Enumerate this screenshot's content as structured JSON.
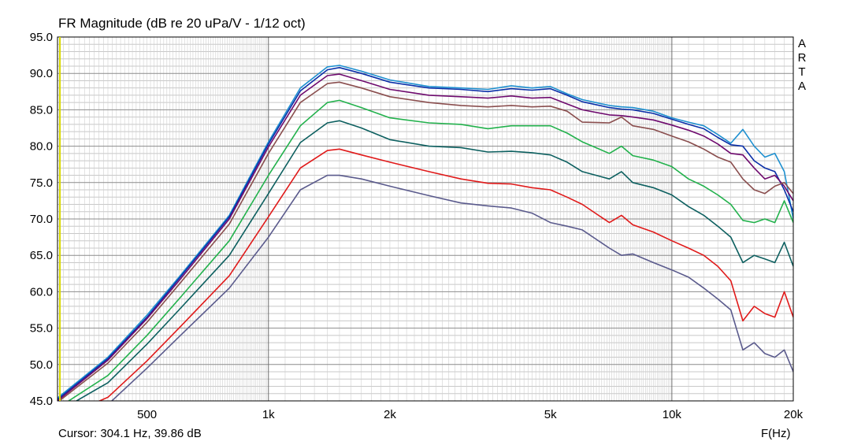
{
  "chart_data": {
    "type": "line",
    "title": "FR Magnitude (dB re 20 uPa/V - 1/12 oct)",
    "xlabel": "F(Hz)",
    "xscale": "log",
    "xlim": [
      300,
      20000
    ],
    "ylim": [
      45,
      95
    ],
    "grid": true,
    "yticks": [
      "95.0",
      "90.0",
      "85.0",
      "80.0",
      "75.0",
      "70.0",
      "65.0",
      "60.0",
      "55.0",
      "50.0",
      "45.0"
    ],
    "xticks": [
      {
        "label": "500",
        "value": 500
      },
      {
        "label": "1k",
        "value": 1000
      },
      {
        "label": "2k",
        "value": 2000
      },
      {
        "label": "5k",
        "value": 5000
      },
      {
        "label": "10k",
        "value": 10000
      },
      {
        "label": "20k",
        "value": 20000
      }
    ],
    "x": [
      300,
      400,
      500,
      600,
      800,
      1000,
      1200,
      1400,
      1500,
      1700,
      2000,
      2500,
      3000,
      3500,
      4000,
      4500,
      5000,
      5500,
      6000,
      7000,
      7500,
      8000,
      9000,
      10000,
      11000,
      12000,
      13000,
      14000,
      15000,
      16000,
      17000,
      18000,
      19000,
      20000
    ],
    "series": [
      {
        "color": "#1e90d0",
        "values": [
          45.4,
          51.0,
          56.8,
          62.0,
          70.5,
          80.6,
          88.0,
          90.9,
          91.1,
          90.3,
          89.1,
          88.2,
          88.0,
          87.8,
          88.3,
          88.0,
          88.2,
          87.2,
          86.4,
          85.6,
          85.4,
          85.3,
          84.8,
          83.9,
          83.3,
          82.8,
          81.6,
          80.4,
          82.3,
          80.0,
          78.5,
          79.0,
          76.5,
          70.0
        ]
      },
      {
        "color": "#0a2fa8",
        "values": [
          45.2,
          50.8,
          56.5,
          61.8,
          70.3,
          80.3,
          87.6,
          90.5,
          90.8,
          90.0,
          88.8,
          88.0,
          87.8,
          87.5,
          87.9,
          87.7,
          87.9,
          87.0,
          86.1,
          85.3,
          85.1,
          85.0,
          84.5,
          83.7,
          83.0,
          82.4,
          81.2,
          80.2,
          80.0,
          78.0,
          77.0,
          76.5,
          74.0,
          71.0
        ]
      },
      {
        "color": "#6e0a6e",
        "values": [
          45.0,
          50.6,
          56.3,
          61.5,
          70.0,
          79.9,
          87.0,
          89.7,
          89.9,
          89.0,
          87.8,
          87.0,
          86.8,
          86.6,
          86.9,
          86.6,
          86.7,
          85.8,
          85.0,
          84.3,
          84.2,
          84.0,
          83.6,
          82.9,
          82.2,
          81.4,
          80.3,
          79.0,
          78.8,
          77.0,
          75.5,
          76.0,
          74.5,
          72.5
        ]
      },
      {
        "color": "#8a4e4e",
        "values": [
          44.8,
          50.2,
          55.8,
          61.0,
          69.3,
          79.0,
          86.0,
          88.6,
          88.8,
          88.0,
          86.8,
          86.0,
          85.6,
          85.4,
          85.6,
          85.4,
          85.5,
          84.8,
          83.3,
          83.2,
          84.0,
          82.8,
          82.3,
          81.4,
          80.6,
          79.6,
          78.5,
          77.8,
          75.5,
          74.0,
          73.5,
          74.5,
          75.0,
          73.5
        ]
      },
      {
        "color": "#22b14c",
        "values": [
          44.0,
          48.5,
          54.0,
          59.0,
          67.0,
          76.0,
          82.8,
          86.0,
          86.3,
          85.3,
          83.9,
          83.2,
          83.0,
          82.4,
          82.8,
          82.8,
          82.8,
          81.8,
          80.6,
          79.0,
          80.0,
          78.7,
          78.1,
          77.2,
          75.5,
          74.5,
          73.3,
          72.0,
          69.8,
          69.5,
          70.0,
          69.5,
          72.5,
          69.5
        ]
      },
      {
        "color": "#0c5f5f",
        "values": [
          43.5,
          47.5,
          52.8,
          57.5,
          65.0,
          73.5,
          80.5,
          83.2,
          83.5,
          82.5,
          80.9,
          80.0,
          79.8,
          79.2,
          79.3,
          79.1,
          78.8,
          77.8,
          76.5,
          75.5,
          76.5,
          75.0,
          74.3,
          73.3,
          71.7,
          70.5,
          69.0,
          67.5,
          64.0,
          65.0,
          64.5,
          64.0,
          66.8,
          63.5
        ]
      },
      {
        "color": "#e01a1a",
        "values": [
          42.5,
          45.5,
          50.5,
          55.0,
          62.2,
          70.3,
          77.0,
          79.4,
          79.6,
          78.8,
          77.8,
          76.5,
          75.5,
          74.9,
          74.8,
          74.3,
          74.0,
          73.0,
          72.0,
          69.5,
          70.5,
          69.2,
          68.2,
          67.0,
          66.0,
          65.0,
          63.5,
          61.5,
          56.0,
          58.0,
          57.0,
          56.5,
          60.0,
          56.5
        ]
      },
      {
        "color": "#5a5a8c",
        "values": [
          42.0,
          44.5,
          49.5,
          53.8,
          60.5,
          67.5,
          74.0,
          76.0,
          76.0,
          75.5,
          74.5,
          73.2,
          72.2,
          71.8,
          71.5,
          70.8,
          69.5,
          69.0,
          68.5,
          66.0,
          65.0,
          65.2,
          64.0,
          63.0,
          62.0,
          60.5,
          59.0,
          57.5,
          52.0,
          53.0,
          51.5,
          51.0,
          52.0,
          49.0
        ]
      }
    ]
  },
  "brand": [
    "A",
    "R",
    "T",
    "A"
  ],
  "status": {
    "cursor": "Cursor: 304.1 Hz, 39.86 dB"
  }
}
